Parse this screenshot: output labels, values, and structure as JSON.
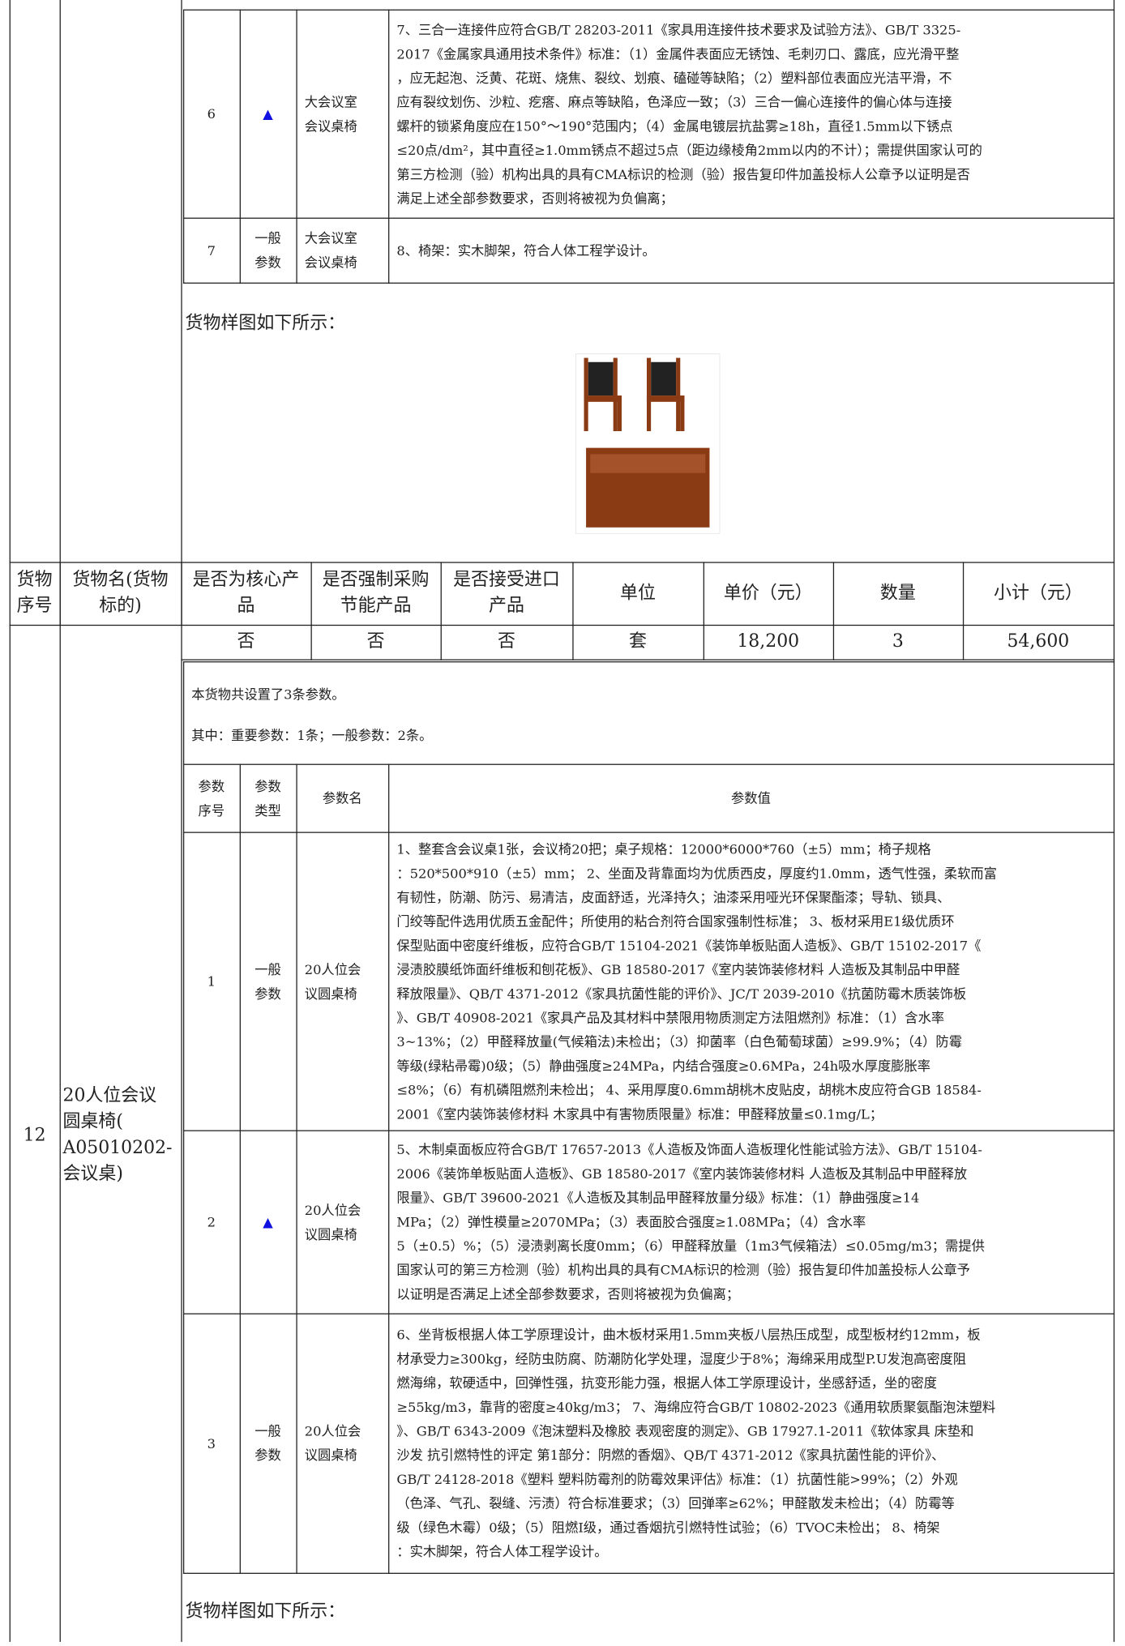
{
  "top_table": {
    "rows": [
      {
        "no": "6",
        "type": "▲",
        "name": [
          "大会议室",
          "会议桌椅"
        ],
        "value": [
          "7、三合一连接件应符合GB/T 28203-2011《家具用连接件技术要求及试验方法》、GB/T 3325-",
          "2017《金属家具通用技术条件》标准：（1）金属件表面应无锈蚀、毛刺刃口、露底，应光滑平整",
          "，应无起泡、泛黄、花斑、烧焦、裂纹、划痕、磕碰等缺陷；（2）塑料部位表面应光洁平滑，不",
          "应有裂纹划伤、沙粒、疙瘩、麻点等缺陷，色泽应一致；（3）三合一偏心连接件的偏心体与连接",
          "螺杆的锁紧角度应在150°～190°范围内；（4）金属电镀层抗盐雾≥18h，直径1.5mm以下锈点",
          "≤20点/dm²，其中直径≥1.0mm锈点不超过5点（距边缘棱角2mm以内的不计）；需提供国家认可的",
          "第三方检测（验）机构出具的具有CMA标识的检测（验）报告复印件加盖投标人公章予以证明是否",
          "满足上述全部参数要求，否则将被视为负偏离；"
        ]
      },
      {
        "no": "7",
        "type": [
          "一般",
          "参数"
        ],
        "name": [
          "大会议室",
          "会议桌椅"
        ],
        "value": [
          "8、椅架：实木脚架，符合人体工程学设计。"
        ]
      }
    ]
  },
  "sample_label_1": "货物样图如下所示：",
  "item_header": [
    [
      "货物",
      "序号"
    ],
    [
      "货物名(货物",
      "标的)"
    ],
    [
      "是否为核心产",
      "品"
    ],
    [
      "是否强制采购",
      "节能产品"
    ],
    [
      "是否接受进口",
      "产品"
    ],
    "单位",
    "单价（元）",
    "数量",
    "小计（元）"
  ],
  "item": {
    "no": "12",
    "name": [
      "20人位会议",
      "圆桌椅(",
      "A05010202-",
      "会议桌)"
    ],
    "values": [
      "否",
      "否",
      "否",
      "套",
      "18,200",
      "3",
      "54,600"
    ]
  },
  "params": {
    "summary": "本货物共设置了3条参数。",
    "counts": "其中：重要参数：1条；一般参数：2条。",
    "header": [
      [
        "参数",
        "序号"
      ],
      [
        "参数",
        "类型"
      ],
      "参数名",
      "参数值"
    ],
    "rows": [
      {
        "no": "1",
        "type": [
          "一般",
          "参数"
        ],
        "name": [
          "20人位会",
          "议圆桌椅"
        ],
        "value": [
          "1、整套含会议桌1张，会议椅20把；桌子规格：12000*6000*760（±5）mm；椅子规格",
          "：520*500*910（±5）mm； 2、坐面及背靠面均为优质西皮，厚度约1.0mm，透气性强，柔软而富",
          "有韧性，防潮、防污、易清洁，皮面舒适，光泽持久；油漆采用哑光环保聚酯漆；导轨、锁具、",
          "门绞等配件选用优质五金配件；所使用的粘合剂符合国家强制性标准； 3、板材采用E1级优质环",
          "保型贴面中密度纤维板，应符合GB/T 15104-2021《装饰单板贴面人造板》、GB/T 15102-2017《",
          "浸渍胶膜纸饰面纤维板和刨花板》、GB 18580-2017《室内装饰装修材料 人造板及其制品中甲醛",
          "释放限量》、QB/T 4371-2012《家具抗菌性能的评价》、JC/T 2039-2010《抗菌防霉木质装饰板",
          "》、GB/T 40908-2021《家具产品及其材料中禁限用物质测定方法阻燃剂》标准：（1）含水率",
          "3~13%；（2）甲醛释放量(气候箱法)未检出；（3）抑菌率（白色葡萄球菌）≥99.9%；（4）防霉",
          "等级(绿粘帚霉)0级；（5）静曲强度≥24MPa，内结合强度≥0.6MPa，24h吸水厚度膨胀率",
          "≤8%；（6）有机磷阻燃剂未检出； 4、采用厚度0.6mm胡桃木皮贴皮，胡桃木皮应符合GB 18584-",
          "2001《室内装饰装修材料 木家具中有害物质限量》标准：甲醛释放量≤0.1mg/L；"
        ]
      },
      {
        "no": "2",
        "type": "▲",
        "name": [
          "20人位会",
          "议圆桌椅"
        ],
        "value": [
          "5、木制桌面板应符合GB/T 17657-2013《人造板及饰面人造板理化性能试验方法》、GB/T 15104-",
          "2006《装饰单板贴面人造板》、GB 18580-2017《室内装饰装修材料 人造板及其制品中甲醛释放",
          "限量》、GB/T 39600-2021《人造板及其制品甲醛释放量分级》标准：（1）静曲强度≥14",
          "MPa；（2）弹性模量≥2070MPa；（3）表面胶合强度≥1.08MPa；（4）含水率",
          "5（±0.5）%；（5）浸渍剥离长度0mm；（6）甲醛释放量（1m3气候箱法）≤0.05mg/m3；需提供",
          "国家认可的第三方检测（验）机构出具的具有CMA标识的检测（验）报告复印件加盖投标人公章予",
          "以证明是否满足上述全部参数要求，否则将被视为负偏离；"
        ]
      },
      {
        "no": "3",
        "type": [
          "一般",
          "参数"
        ],
        "name": [
          "20人位会",
          "议圆桌椅"
        ],
        "value": [
          "6、坐背板根据人体工学原理设计，曲木板材采用1.5mm夹板八层热压成型，成型板材约12mm，板",
          "材承受力≥300kg，经防虫防腐、防潮防化学处理，湿度少于8%；海绵采用成型P.U发泡高密度阻",
          "燃海绵，软硬适中，回弹性强，抗变形能力强，根据人体工学原理设计，坐感舒适，坐的密度",
          "≥55kg/m3，靠背的密度≥40kg/m3； 7、海绵应符合GB/T 10802-2023《通用软质聚氨酯泡沫塑料",
          "》、GB/T 6343-2009《泡沫塑料及橡胶 表观密度的测定》、GB 17927.1-2011《软体家具 床垫和",
          "沙发 抗引燃特性的评定 第1部分：阴燃的香烟》、QB/T 4371-2012《家具抗菌性能的评价》、",
          "GB/T 24128-2018《塑料 塑料防霉剂的防霉效果评估》标准：（1）抗菌性能>99%；（2）外观",
          "（色泽、气孔、裂缝、污渍）符合标准要求；（3）回弹率≥62%；甲醛散发未检出；（4）防霉等",
          "级（绿色木霉）0级；（5）阻燃Ⅰ级，通过香烟抗引燃特性试验；（6）TVOC未检出； 8、椅架",
          "：实木脚架，符合人体工程学设计。"
        ]
      }
    ]
  },
  "sample_label_2": "货物样图如下所示："
}
